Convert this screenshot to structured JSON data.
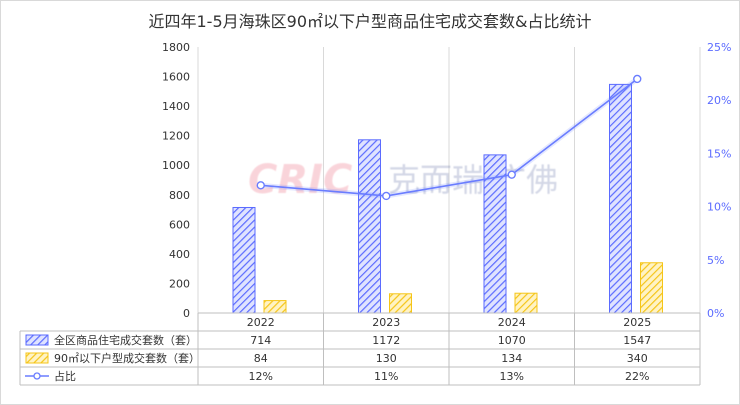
{
  "title": "近四年1-5月海珠区90㎡以下户型商品住宅成交套数&占比统计",
  "watermark": {
    "brand_en": "CRIC",
    "brand_cn": "克而瑞·广佛"
  },
  "colors": {
    "series1": "#5b6bff",
    "series2": "#f5c518",
    "ratio": "#6a7dff",
    "right_axis": "#5b6bff",
    "grid": "#d9d9d9"
  },
  "chart_data": {
    "type": "bar",
    "title": "近四年1-5月海珠区90㎡以下户型商品住宅成交套数&占比统计",
    "categories": [
      "2022",
      "2023",
      "2024",
      "2025"
    ],
    "series": [
      {
        "name": "全区商品住宅成交套数（套）",
        "values": [
          714,
          1172,
          1070,
          1547
        ],
        "kind": "bar",
        "pattern": "hatched",
        "axis": "left"
      },
      {
        "name": "90㎡以下户型成交套数（套）",
        "values": [
          84,
          130,
          134,
          340
        ],
        "kind": "bar",
        "pattern": "hatched",
        "axis": "left"
      },
      {
        "name": "占比",
        "values": [
          0.12,
          0.11,
          0.13,
          0.22
        ],
        "kind": "line",
        "marker": "circle",
        "axis": "right"
      }
    ],
    "ylim": [
      0,
      1800
    ],
    "yticks": [
      "0",
      "200",
      "400",
      "600",
      "800",
      "1000",
      "1200",
      "1400",
      "1600",
      "1800"
    ],
    "y2lim": [
      0,
      0.25
    ],
    "y2ticks": [
      "0%",
      "5%",
      "10%",
      "15%",
      "20%",
      "25%"
    ],
    "table_rows": [
      {
        "label": "全区商品住宅成交套数（套）",
        "cells": [
          "714",
          "1172",
          "1070",
          "1547"
        ]
      },
      {
        "label": "90㎡以下户型成交套数（套）",
        "cells": [
          "84",
          "130",
          "134",
          "340"
        ]
      },
      {
        "label": "占比",
        "cells": [
          "12%",
          "11%",
          "13%",
          "22%"
        ]
      }
    ],
    "grid": "vertical-category-separators",
    "legend": "data-table"
  }
}
